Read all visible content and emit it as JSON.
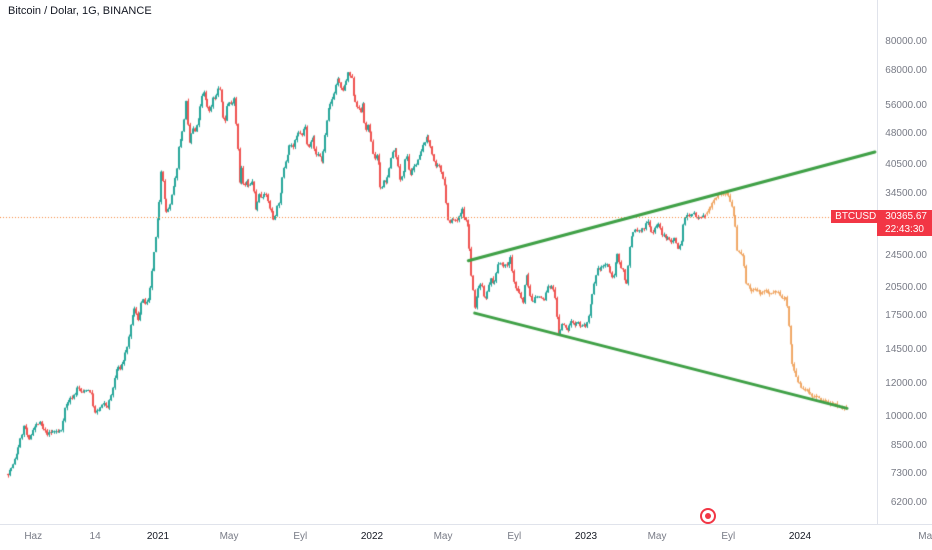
{
  "header": {
    "legend": "Bitcoin / Dolar, 1G, BINANCE"
  },
  "price_label": {
    "symbol": "BTCUSD",
    "price": "30365.67",
    "countdown": "22:43:30"
  },
  "chart_data": {
    "type": "candlestick",
    "title": "Bitcoin / Dolar, 1G, BINANCE",
    "symbol": "BTCUSD",
    "exchange": "BINANCE",
    "interval": "1G",
    "current_price": 30365.67,
    "xlim": [
      2020.2617,
      2024.3598
    ],
    "ylim_log": [
      5530,
      101000
    ],
    "y_axis": {
      "scale": "log",
      "ticks": [
        80000,
        68000,
        56000,
        48000,
        40500,
        34500,
        24500,
        20500,
        17500,
        14500,
        12000,
        10000,
        8500,
        7300,
        6200
      ]
    },
    "x_axis": {
      "ticks": [
        {
          "label": "Haz",
          "t": 2020.417
        },
        {
          "label": "14",
          "t": 2020.706
        },
        {
          "label": "2021",
          "t": 2021.0,
          "year": true
        },
        {
          "label": "May",
          "t": 2021.332
        },
        {
          "label": "Eyl",
          "t": 2021.665
        },
        {
          "label": "2022",
          "t": 2022.0,
          "year": true
        },
        {
          "label": "May",
          "t": 2022.332
        },
        {
          "label": "Eyl",
          "t": 2022.665
        },
        {
          "label": "2023",
          "t": 2023.0,
          "year": true
        },
        {
          "label": "May",
          "t": 2023.332
        },
        {
          "label": "Eyl",
          "t": 2023.665
        },
        {
          "label": "2024",
          "t": 2024.0,
          "year": true
        },
        {
          "label": "Ma",
          "t": 2024.585
        }
      ]
    },
    "colors": {
      "up": "#26a69a",
      "down": "#ef5350",
      "projection": "#f0a35e",
      "trendline": "#3fa046",
      "price_line": "#f7883b",
      "badge": "#f23645"
    },
    "candle_step": 0.00833,
    "candles_t_range": [
      2020.298,
      2023.556
    ],
    "projection_t_range": [
      2023.565,
      2024.215
    ],
    "price_path": [
      [
        2020.3,
        7300
      ],
      [
        2020.33,
        7700
      ],
      [
        2020.36,
        8800
      ],
      [
        2020.38,
        9600
      ],
      [
        2020.4,
        8700
      ],
      [
        2020.42,
        9450
      ],
      [
        2020.45,
        9700
      ],
      [
        2020.47,
        9300
      ],
      [
        2020.49,
        9100
      ],
      [
        2020.52,
        9250
      ],
      [
        2020.55,
        9200
      ],
      [
        2020.57,
        10600
      ],
      [
        2020.59,
        11000
      ],
      [
        2020.61,
        11300
      ],
      [
        2020.63,
        11800
      ],
      [
        2020.65,
        11400
      ],
      [
        2020.67,
        11700
      ],
      [
        2020.69,
        11500
      ],
      [
        2020.71,
        10200
      ],
      [
        2020.73,
        10450
      ],
      [
        2020.75,
        10750
      ],
      [
        2020.77,
        10600
      ],
      [
        2020.79,
        11500
      ],
      [
        2020.81,
        13050
      ],
      [
        2020.83,
        13150
      ],
      [
        2020.85,
        14100
      ],
      [
        2020.87,
        15600
      ],
      [
        2020.89,
        18400
      ],
      [
        2020.91,
        17200
      ],
      [
        2020.93,
        19150
      ],
      [
        2020.95,
        18700
      ],
      [
        2020.965,
        19400
      ],
      [
        2020.98,
        23500
      ],
      [
        2020.995,
        27400
      ],
      [
        2021.01,
        33000
      ],
      [
        2021.02,
        40600
      ],
      [
        2021.03,
        36000
      ],
      [
        2021.04,
        31000
      ],
      [
        2021.06,
        32300
      ],
      [
        2021.075,
        35500
      ],
      [
        2021.09,
        38300
      ],
      [
        2021.105,
        46400
      ],
      [
        2021.12,
        48700
      ],
      [
        2021.135,
        57400
      ],
      [
        2021.15,
        45200
      ],
      [
        2021.165,
        49600
      ],
      [
        2021.18,
        48400
      ],
      [
        2021.2,
        54900
      ],
      [
        2021.215,
        61200
      ],
      [
        2021.23,
        57300
      ],
      [
        2021.245,
        54100
      ],
      [
        2021.26,
        58900
      ],
      [
        2021.275,
        58800
      ],
      [
        2021.29,
        63500
      ],
      [
        2021.305,
        55000
      ],
      [
        2021.315,
        50500
      ],
      [
        2021.33,
        57700
      ],
      [
        2021.345,
        56400
      ],
      [
        2021.36,
        58900
      ],
      [
        2021.37,
        49700
      ],
      [
        2021.378,
        43500
      ],
      [
        2021.385,
        37000
      ],
      [
        2021.395,
        40200
      ],
      [
        2021.405,
        34700
      ],
      [
        2021.415,
        37300
      ],
      [
        2021.43,
        35600
      ],
      [
        2021.445,
        37300
      ],
      [
        2021.46,
        31600
      ],
      [
        2021.475,
        34400
      ],
      [
        2021.49,
        33700
      ],
      [
        2021.5,
        35000
      ],
      [
        2021.515,
        33500
      ],
      [
        2021.53,
        31500
      ],
      [
        2021.545,
        29800
      ],
      [
        2021.56,
        32100
      ],
      [
        2021.575,
        33800
      ],
      [
        2021.59,
        39500
      ],
      [
        2021.605,
        42200
      ],
      [
        2021.62,
        45600
      ],
      [
        2021.635,
        44700
      ],
      [
        2021.65,
        47100
      ],
      [
        2021.665,
        48800
      ],
      [
        2021.68,
        47100
      ],
      [
        2021.69,
        51800
      ],
      [
        2021.7,
        46000
      ],
      [
        2021.71,
        45200
      ],
      [
        2021.725,
        47300
      ],
      [
        2021.74,
        42800
      ],
      [
        2021.755,
        43200
      ],
      [
        2021.77,
        41000
      ],
      [
        2021.785,
        47700
      ],
      [
        2021.8,
        54700
      ],
      [
        2021.815,
        57500
      ],
      [
        2021.83,
        61600
      ],
      [
        2021.845,
        66000
      ],
      [
        2021.855,
        62200
      ],
      [
        2021.865,
        60900
      ],
      [
        2021.88,
        63300
      ],
      [
        2021.895,
        67500
      ],
      [
        2021.91,
        64900
      ],
      [
        2021.92,
        58700
      ],
      [
        2021.935,
        56300
      ],
      [
        2021.95,
        53700
      ],
      [
        2021.96,
        57200
      ],
      [
        2021.97,
        49300
      ],
      [
        2021.985,
        50100
      ],
      [
        2022.0,
        46200
      ],
      [
        2022.015,
        41800
      ],
      [
        2022.03,
        43100
      ],
      [
        2022.045,
        35100
      ],
      [
        2022.06,
        36900
      ],
      [
        2022.075,
        37000
      ],
      [
        2022.09,
        41500
      ],
      [
        2022.105,
        44400
      ],
      [
        2022.12,
        42400
      ],
      [
        2022.135,
        37000
      ],
      [
        2022.15,
        39100
      ],
      [
        2022.165,
        43900
      ],
      [
        2022.18,
        38300
      ],
      [
        2022.195,
        39000
      ],
      [
        2022.21,
        41000
      ],
      [
        2022.225,
        42300
      ],
      [
        2022.24,
        44300
      ],
      [
        2022.255,
        47100
      ],
      [
        2022.27,
        46300
      ],
      [
        2022.285,
        43200
      ],
      [
        2022.3,
        39700
      ],
      [
        2022.315,
        40400
      ],
      [
        2022.33,
        38600
      ],
      [
        2022.345,
        36000
      ],
      [
        2022.355,
        31000
      ],
      [
        2022.365,
        29000
      ],
      [
        2022.38,
        30100
      ],
      [
        2022.395,
        29500
      ],
      [
        2022.41,
        30200
      ],
      [
        2022.425,
        31700
      ],
      [
        2022.44,
        29900
      ],
      [
        2022.455,
        28400
      ],
      [
        2022.465,
        22500
      ],
      [
        2022.475,
        20500
      ],
      [
        2022.485,
        18200
      ],
      [
        2022.5,
        20600
      ],
      [
        2022.515,
        21100
      ],
      [
        2022.53,
        19200
      ],
      [
        2022.545,
        20100
      ],
      [
        2022.56,
        21600
      ],
      [
        2022.575,
        20800
      ],
      [
        2022.59,
        23200
      ],
      [
        2022.605,
        23800
      ],
      [
        2022.62,
        22900
      ],
      [
        2022.635,
        23300
      ],
      [
        2022.65,
        24400
      ],
      [
        2022.665,
        21500
      ],
      [
        2022.68,
        20000
      ],
      [
        2022.695,
        19800
      ],
      [
        2022.71,
        18800
      ],
      [
        2022.725,
        22400
      ],
      [
        2022.74,
        19700
      ],
      [
        2022.75,
        18900
      ],
      [
        2022.765,
        19400
      ],
      [
        2022.78,
        19550
      ],
      [
        2022.795,
        19300
      ],
      [
        2022.81,
        19100
      ],
      [
        2022.825,
        20700
      ],
      [
        2022.84,
        20500
      ],
      [
        2022.855,
        20400
      ],
      [
        2022.865,
        18300
      ],
      [
        2022.875,
        15700
      ],
      [
        2022.89,
        16700
      ],
      [
        2022.905,
        16500
      ],
      [
        2022.92,
        16200
      ],
      [
        2022.935,
        17100
      ],
      [
        2022.95,
        16800
      ],
      [
        2022.965,
        16900
      ],
      [
        2022.98,
        16600
      ],
      [
        2023.0,
        16600
      ],
      [
        2023.015,
        17000
      ],
      [
        2023.03,
        19100
      ],
      [
        2023.045,
        21100
      ],
      [
        2023.06,
        22700
      ],
      [
        2023.075,
        23000
      ],
      [
        2023.09,
        23100
      ],
      [
        2023.105,
        23500
      ],
      [
        2023.12,
        21800
      ],
      [
        2023.135,
        22100
      ],
      [
        2023.15,
        24600
      ],
      [
        2023.165,
        23200
      ],
      [
        2023.18,
        22400
      ],
      [
        2023.19,
        20200
      ],
      [
        2023.205,
        24700
      ],
      [
        2023.22,
        27500
      ],
      [
        2023.235,
        28300
      ],
      [
        2023.25,
        28000
      ],
      [
        2023.265,
        28200
      ],
      [
        2023.28,
        28500
      ],
      [
        2023.29,
        30200
      ],
      [
        2023.305,
        28300
      ],
      [
        2023.315,
        27600
      ],
      [
        2023.33,
        29200
      ],
      [
        2023.345,
        28900
      ],
      [
        2023.36,
        27600
      ],
      [
        2023.375,
        26900
      ],
      [
        2023.39,
        27100
      ],
      [
        2023.405,
        26300
      ],
      [
        2023.42,
        27200
      ],
      [
        2023.435,
        25300
      ],
      [
        2023.45,
        26500
      ],
      [
        2023.465,
        30500
      ],
      [
        2023.48,
        30400
      ],
      [
        2023.495,
        30600
      ],
      [
        2023.51,
        31000
      ],
      [
        2023.525,
        30300
      ],
      [
        2023.54,
        30600
      ],
      [
        2023.555,
        30365
      ]
    ],
    "projection_path": [
      [
        2023.565,
        30800
      ],
      [
        2023.585,
        32200
      ],
      [
        2023.605,
        33600
      ],
      [
        2023.625,
        35000
      ],
      [
        2023.64,
        34200
      ],
      [
        2023.655,
        34600
      ],
      [
        2023.67,
        33900
      ],
      [
        2023.685,
        32000
      ],
      [
        2023.7,
        30000
      ],
      [
        2023.71,
        25200
      ],
      [
        2023.725,
        24700
      ],
      [
        2023.74,
        24300
      ],
      [
        2023.75,
        21200
      ],
      [
        2023.765,
        20400
      ],
      [
        2023.78,
        20100
      ],
      [
        2023.8,
        20200
      ],
      [
        2023.82,
        19900
      ],
      [
        2023.84,
        20100
      ],
      [
        2023.86,
        19700
      ],
      [
        2023.88,
        19900
      ],
      [
        2023.9,
        20000
      ],
      [
        2023.92,
        19500
      ],
      [
        2023.94,
        19300
      ],
      [
        2023.955,
        16000
      ],
      [
        2023.97,
        13400
      ],
      [
        2023.985,
        12400
      ],
      [
        2024.0,
        12100
      ],
      [
        2024.02,
        11700
      ],
      [
        2024.04,
        11500
      ],
      [
        2024.06,
        11300
      ],
      [
        2024.08,
        11200
      ],
      [
        2024.1,
        11000
      ],
      [
        2024.12,
        10900
      ],
      [
        2024.14,
        10800
      ],
      [
        2024.16,
        10700
      ],
      [
        2024.18,
        10650
      ],
      [
        2024.2,
        10600
      ],
      [
        2024.215,
        10550
      ]
    ],
    "trendlines": [
      {
        "from": [
          2022.45,
          23800
        ],
        "to": [
          2024.35,
          43500
        ]
      },
      {
        "from": [
          2022.48,
          17800
        ],
        "to": [
          2024.22,
          10500
        ]
      }
    ]
  }
}
